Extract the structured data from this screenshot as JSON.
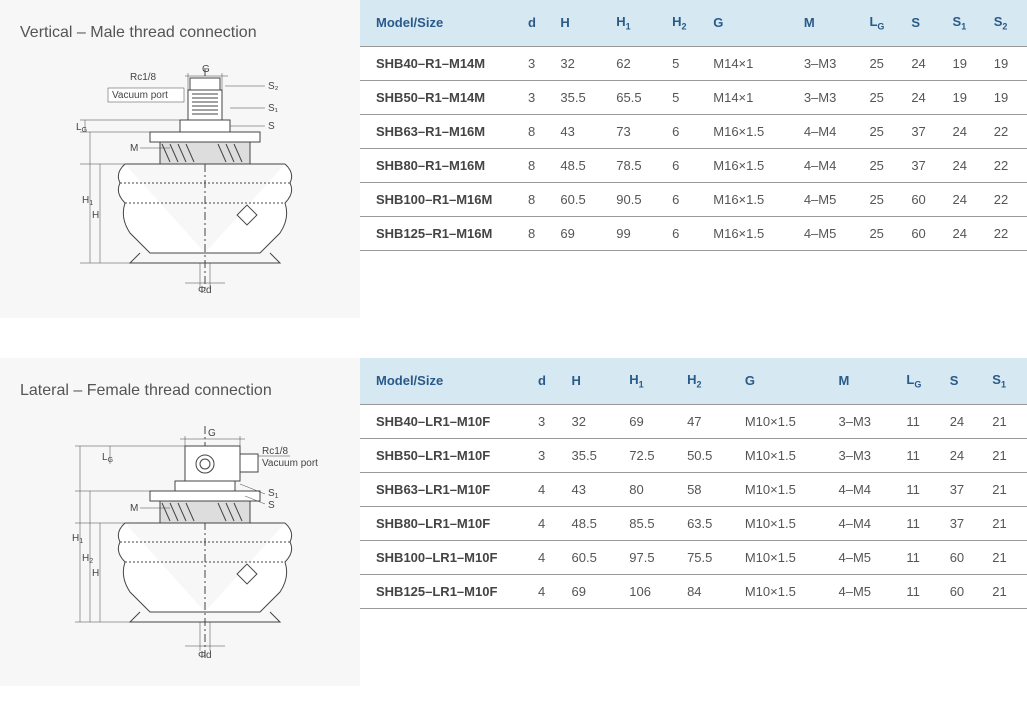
{
  "sections": [
    {
      "title": "Vertical – Male thread connection",
      "diagram_labels": {
        "rc": "Rc1/8",
        "vacuum": "Vacuum port",
        "g": "G",
        "s2": "S₂",
        "s1": "S₁",
        "s": "S",
        "m": "M",
        "lg": "L_G",
        "h1": "H₁",
        "h": "H",
        "phid": "Φd"
      },
      "table": {
        "columns": [
          "Model/Size",
          "d",
          "H",
          "H₁",
          "H₂",
          "G",
          "M",
          "L_G",
          "S",
          "S₁",
          "S₂"
        ],
        "rows": [
          [
            "SHB40–R1–M14M",
            "3",
            "32",
            "62",
            "5",
            "M14×1",
            "3–M3",
            "25",
            "24",
            "19",
            "19"
          ],
          [
            "SHB50–R1–M14M",
            "3",
            "35.5",
            "65.5",
            "5",
            "M14×1",
            "3–M3",
            "25",
            "24",
            "19",
            "19"
          ],
          [
            "SHB63–R1–M16M",
            "8",
            "43",
            "73",
            "6",
            "M16×1.5",
            "4–M4",
            "25",
            "37",
            "24",
            "22"
          ],
          [
            "SHB80–R1–M16M",
            "8",
            "48.5",
            "78.5",
            "6",
            "M16×1.5",
            "4–M4",
            "25",
            "37",
            "24",
            "22"
          ],
          [
            "SHB100–R1–M16M",
            "8",
            "60.5",
            "90.5",
            "6",
            "M16×1.5",
            "4–M5",
            "25",
            "60",
            "24",
            "22"
          ],
          [
            "SHB125–R1–M16M",
            "8",
            "69",
            "99",
            "6",
            "M16×1.5",
            "4–M5",
            "25",
            "60",
            "24",
            "22"
          ]
        ]
      },
      "colors": {
        "header_bg": "#d6e8f1",
        "header_text": "#2a5a8a",
        "row_border": "#999999",
        "cell_text": "#555555",
        "diagram_bg": "#f7f7f7",
        "diagram_stroke": "#444444"
      }
    },
    {
      "title": "Lateral – Female thread connection",
      "diagram_labels": {
        "rc": "Rc1/8",
        "vacuum": "Vacuum port",
        "g": "G",
        "s1": "S₁",
        "s": "S",
        "m": "M",
        "lg": "L_G",
        "h1": "H₁",
        "h2": "H₂",
        "h": "H",
        "phid": "Φd"
      },
      "table": {
        "columns": [
          "Model/Size",
          "d",
          "H",
          "H₁",
          "H₂",
          "G",
          "M",
          "L_G",
          "S",
          "S₁"
        ],
        "rows": [
          [
            "SHB40–LR1–M10F",
            "3",
            "32",
            "69",
            "47",
            "M10×1.5",
            "3–M3",
            "11",
            "24",
            "21"
          ],
          [
            "SHB50–LR1–M10F",
            "3",
            "35.5",
            "72.5",
            "50.5",
            "M10×1.5",
            "3–M3",
            "11",
            "24",
            "21"
          ],
          [
            "SHB63–LR1–M10F",
            "4",
            "43",
            "80",
            "58",
            "M10×1.5",
            "4–M4",
            "11",
            "37",
            "21"
          ],
          [
            "SHB80–LR1–M10F",
            "4",
            "48.5",
            "85.5",
            "63.5",
            "M10×1.5",
            "4–M4",
            "11",
            "37",
            "21"
          ],
          [
            "SHB100–LR1–M10F",
            "4",
            "60.5",
            "97.5",
            "75.5",
            "M10×1.5",
            "4–M5",
            "11",
            "60",
            "21"
          ],
          [
            "SHB125–LR1–M10F",
            "4",
            "69",
            "106",
            "84",
            "M10×1.5",
            "4–M5",
            "11",
            "60",
            "21"
          ]
        ]
      },
      "colors": {
        "header_bg": "#d6e8f1",
        "header_text": "#2a5a8a",
        "row_border": "#999999",
        "cell_text": "#555555",
        "diagram_bg": "#f7f7f7",
        "diagram_stroke": "#444444"
      }
    }
  ]
}
